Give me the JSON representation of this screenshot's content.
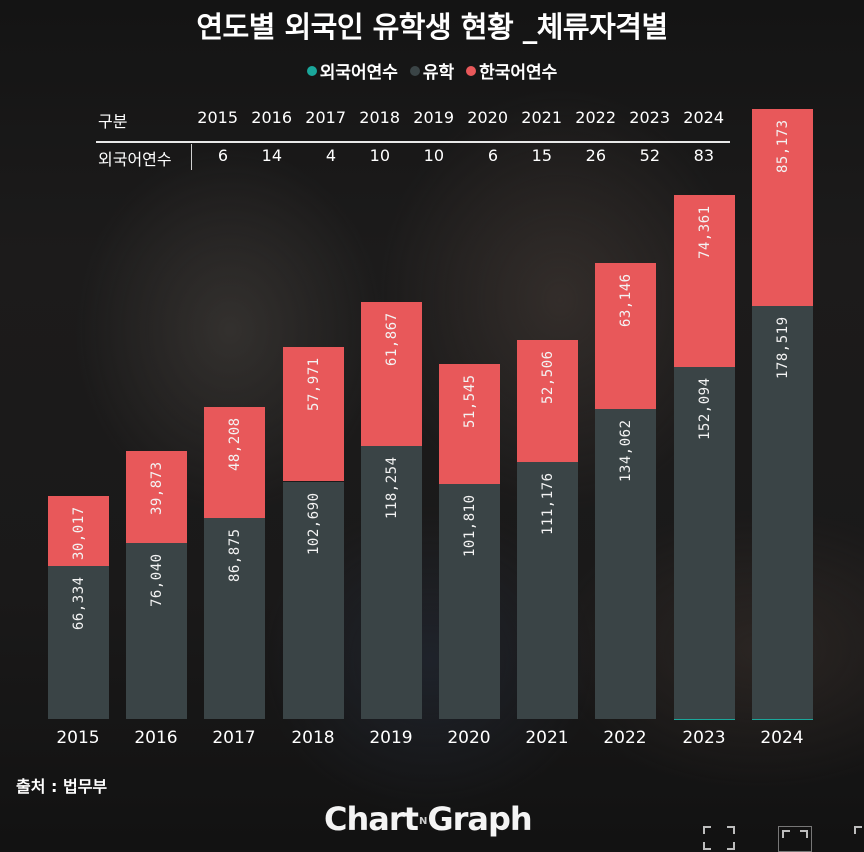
{
  "title": "연도별 외국인 유학생 현황 _체류자격별",
  "legend": [
    {
      "label": "외국어연수",
      "color": "#1aa79b"
    },
    {
      "label": "유학",
      "color": "#3a4446"
    },
    {
      "label": "한국어연수",
      "color": "#e8585a"
    }
  ],
  "table": {
    "header_label": "구분",
    "row_label": "외국어연수",
    "years": [
      "2015",
      "2016",
      "2017",
      "2018",
      "2019",
      "2020",
      "2021",
      "2022",
      "2023",
      "2024"
    ],
    "values": [
      "6",
      "14",
      "4",
      "10",
      "10",
      "6",
      "15",
      "26",
      "52",
      "83"
    ]
  },
  "source": "출처 : 법무부",
  "logo": {
    "left": "Chart",
    "mid": "N",
    "right": "Graph"
  },
  "player_controls": [
    "fullscreen-icon",
    "theater-mode-icon",
    "miniplayer-icon"
  ],
  "chart_data": {
    "type": "bar",
    "stacked": true,
    "title": "연도별 외국인 유학생 현황 _체류자격별",
    "xlabel": "",
    "ylabel": "",
    "categories": [
      "2015",
      "2016",
      "2017",
      "2018",
      "2019",
      "2020",
      "2021",
      "2022",
      "2023",
      "2024"
    ],
    "series": [
      {
        "name": "외국어연수",
        "color": "#1aa79b",
        "values": [
          6,
          14,
          4,
          10,
          10,
          6,
          15,
          26,
          52,
          83
        ]
      },
      {
        "name": "유학",
        "color": "#3a4446",
        "values": [
          66334,
          76040,
          86875,
          102690,
          118254,
          101810,
          111176,
          134062,
          152094,
          178519
        ]
      },
      {
        "name": "한국어연수",
        "color": "#e8585a",
        "values": [
          30017,
          39873,
          48208,
          57971,
          61867,
          51545,
          52506,
          63146,
          74361,
          85173
        ]
      }
    ],
    "labels": {
      "유학": [
        "66,334",
        "76,040",
        "86,875",
        "102,690",
        "118,254",
        "101,810",
        "111,176",
        "134,062",
        "152,094",
        "178,519"
      ],
      "한국어연수": [
        "30,017",
        "39,873",
        "48,208",
        "57,971",
        "61,867",
        "51,545",
        "52,506",
        "63,146",
        "74,361",
        "85,173"
      ]
    },
    "grid": false,
    "legend_position": "top",
    "y_axis_visible": false
  }
}
